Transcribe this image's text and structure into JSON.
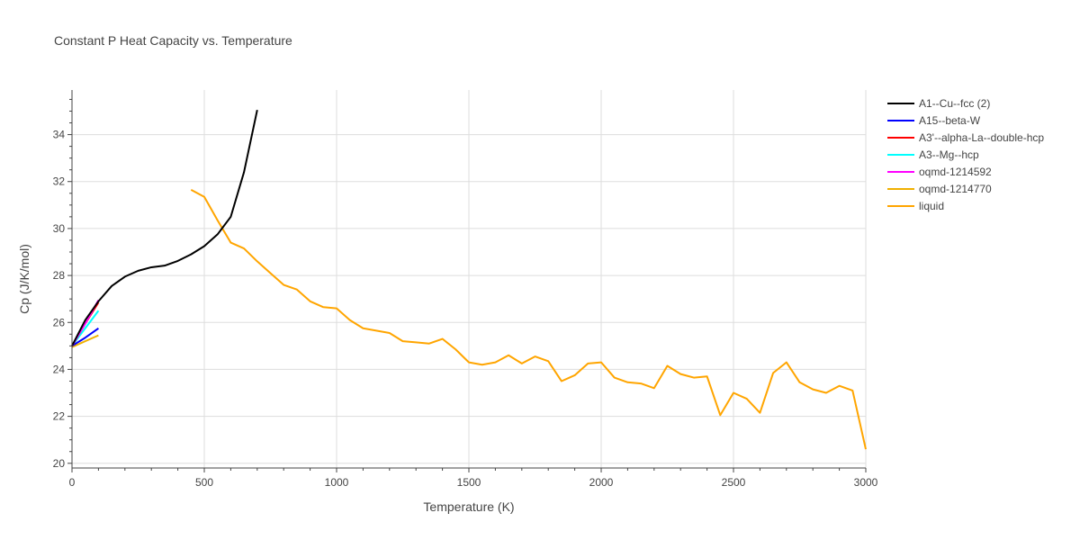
{
  "chart_data": {
    "type": "line",
    "title": "Constant P Heat Capacity vs. Temperature",
    "xlabel": "Temperature (K)",
    "ylabel": "Cp (J/K/mol)",
    "xlim": [
      0,
      3000
    ],
    "ylim": [
      19.8,
      35.9
    ],
    "x_ticks": [
      0,
      500,
      1000,
      1500,
      2000,
      2500,
      3000
    ],
    "x_tick_labels": [
      "0",
      "500",
      "1000",
      "1500",
      "2000",
      "2500",
      "3000"
    ],
    "y_ticks": [
      20,
      22,
      24,
      26,
      28,
      30,
      32,
      34
    ],
    "y_tick_labels": [
      "20",
      "22",
      "24",
      "26",
      "28",
      "30",
      "32",
      "34"
    ],
    "grid": true,
    "legend_position": "top-right",
    "series": [
      {
        "name": "A1--Cu--fcc (2)",
        "color": "#000000",
        "x": [
          0,
          50,
          100,
          150,
          200,
          250,
          300,
          350,
          400,
          450,
          500,
          550,
          600,
          650,
          700
        ],
        "y": [
          25.0,
          26.1,
          26.9,
          27.55,
          27.95,
          28.2,
          28.35,
          28.42,
          28.62,
          28.9,
          29.25,
          29.75,
          30.5,
          32.4,
          35.05
        ]
      },
      {
        "name": "A15--beta-W",
        "color": "#0000ff",
        "x": [
          0,
          50,
          100
        ],
        "y": [
          25.0,
          25.35,
          25.75
        ]
      },
      {
        "name": "A3'--alpha-La--double-hcp",
        "color": "#ff0000",
        "x": [
          0,
          50,
          100
        ],
        "y": [
          25.0,
          25.95,
          26.85
        ]
      },
      {
        "name": "A3--Mg--hcp",
        "color": "#00ffff",
        "x": [
          0,
          50,
          100
        ],
        "y": [
          25.0,
          25.75,
          26.5
        ]
      },
      {
        "name": "oqmd-1214592",
        "color": "#ff00ff",
        "x": [
          0,
          50,
          100
        ],
        "y": [
          25.0,
          25.95,
          26.95
        ]
      },
      {
        "name": "oqmd-1214770",
        "color": "#f0b000",
        "x": [
          0,
          50,
          100
        ],
        "y": [
          24.95,
          25.2,
          25.45
        ]
      },
      {
        "name": "liquid",
        "color": "#ffa500",
        "x": [
          450,
          500,
          550,
          600,
          650,
          700,
          750,
          800,
          850,
          900,
          950,
          1000,
          1050,
          1100,
          1150,
          1200,
          1250,
          1300,
          1350,
          1400,
          1450,
          1500,
          1550,
          1600,
          1650,
          1700,
          1750,
          1800,
          1850,
          1900,
          1950,
          2000,
          2050,
          2100,
          2150,
          2200,
          2250,
          2300,
          2350,
          2400,
          2450,
          2500,
          2550,
          2600,
          2650,
          2700,
          2750,
          2800,
          2850,
          2900,
          2950,
          3000
        ],
        "y": [
          31.65,
          31.35,
          30.35,
          29.4,
          29.15,
          28.6,
          28.1,
          27.6,
          27.4,
          26.9,
          26.65,
          26.6,
          26.1,
          25.75,
          25.65,
          25.55,
          25.2,
          25.15,
          25.1,
          25.3,
          24.85,
          24.3,
          24.2,
          24.3,
          24.6,
          24.25,
          24.55,
          24.35,
          23.5,
          23.75,
          24.25,
          24.3,
          23.65,
          23.45,
          23.4,
          23.2,
          24.15,
          23.8,
          23.65,
          23.7,
          22.05,
          23.0,
          22.75,
          22.15,
          23.85,
          24.3,
          23.45,
          23.15,
          23.0,
          23.3,
          23.1,
          20.6
        ]
      }
    ]
  }
}
